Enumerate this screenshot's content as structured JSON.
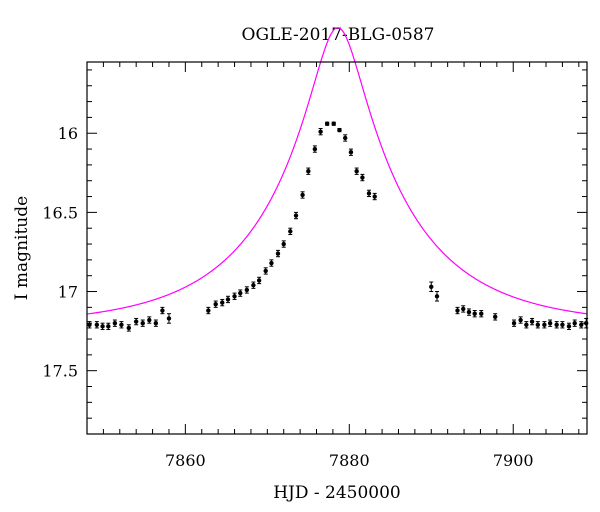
{
  "chart_data": {
    "type": "scatter",
    "title": "OGLE-2017-BLG-0587",
    "xlabel": "HJD - 2450000",
    "ylabel": "I magnitude",
    "xlim": [
      7848,
      7909
    ],
    "ylim": [
      17.9,
      15.55
    ],
    "y_inverted": true,
    "x_major_ticks": [
      7860,
      7880,
      7900
    ],
    "x_tick_labels": [
      "7860",
      "7880",
      "7900"
    ],
    "y_major_ticks": [
      16,
      16.5,
      17,
      17.5
    ],
    "y_tick_labels": [
      "16",
      "16.5",
      "17",
      "17.5"
    ],
    "grid": false,
    "colors": {
      "model": "#ff00ff",
      "points": "#000000"
    },
    "model": {
      "name": "",
      "t0": 7878.6,
      "tE": 16.5,
      "u0": 0.178,
      "baseline": 17.22,
      "blend_fraction": 1.0
    },
    "series": [
      {
        "name": "",
        "x": [
          7848.3,
          7849.2,
          7849.9,
          7850.6,
          7851.4,
          7852.2,
          7853.1,
          7854.0,
          7854.8,
          7855.6,
          7856.4,
          7857.2,
          7858.0,
          7862.8,
          7863.7,
          7864.5,
          7865.2,
          7866.0,
          7866.7,
          7867.5,
          7868.3,
          7869.0,
          7869.8,
          7870.5,
          7871.3,
          7872.0,
          7872.8,
          7873.5,
          7874.3,
          7875.0,
          7875.8,
          7876.5,
          7877.3,
          7878.1,
          7878.8,
          7879.5,
          7880.2,
          7880.9,
          7881.6,
          7882.4,
          7883.1,
          7890.0,
          7890.7,
          7893.2,
          7893.9,
          7894.6,
          7895.3,
          7896.1,
          7897.8,
          7900.1,
          7900.9,
          7901.6,
          7902.3,
          7903.0,
          7903.8,
          7904.5,
          7905.3,
          7906.0,
          7906.8,
          7907.5,
          7908.3,
          7908.9
        ],
        "y": [
          17.21,
          17.21,
          17.22,
          17.22,
          17.2,
          17.21,
          17.23,
          17.19,
          17.2,
          17.18,
          17.2,
          17.12,
          17.17,
          17.12,
          17.08,
          17.07,
          17.05,
          17.03,
          17.01,
          16.99,
          16.96,
          16.93,
          16.87,
          16.82,
          16.76,
          16.7,
          16.62,
          16.52,
          16.39,
          16.24,
          16.1,
          15.99,
          15.94,
          15.94,
          15.98,
          16.03,
          16.12,
          16.24,
          16.28,
          16.38,
          16.4,
          16.97,
          17.03,
          17.12,
          17.11,
          17.13,
          17.14,
          17.14,
          17.16,
          17.2,
          17.18,
          17.21,
          17.19,
          17.21,
          17.21,
          17.2,
          17.21,
          17.21,
          17.22,
          17.2,
          17.21,
          17.2
        ],
        "err": [
          0.02,
          0.02,
          0.02,
          0.02,
          0.02,
          0.02,
          0.02,
          0.02,
          0.02,
          0.02,
          0.02,
          0.02,
          0.03,
          0.02,
          0.02,
          0.02,
          0.02,
          0.02,
          0.02,
          0.02,
          0.02,
          0.02,
          0.02,
          0.02,
          0.02,
          0.02,
          0.02,
          0.02,
          0.02,
          0.02,
          0.02,
          0.02,
          0.01,
          0.01,
          0.01,
          0.02,
          0.02,
          0.02,
          0.02,
          0.02,
          0.02,
          0.03,
          0.03,
          0.02,
          0.02,
          0.02,
          0.02,
          0.02,
          0.02,
          0.02,
          0.02,
          0.02,
          0.02,
          0.02,
          0.02,
          0.02,
          0.02,
          0.02,
          0.02,
          0.02,
          0.02,
          0.03
        ]
      }
    ]
  }
}
